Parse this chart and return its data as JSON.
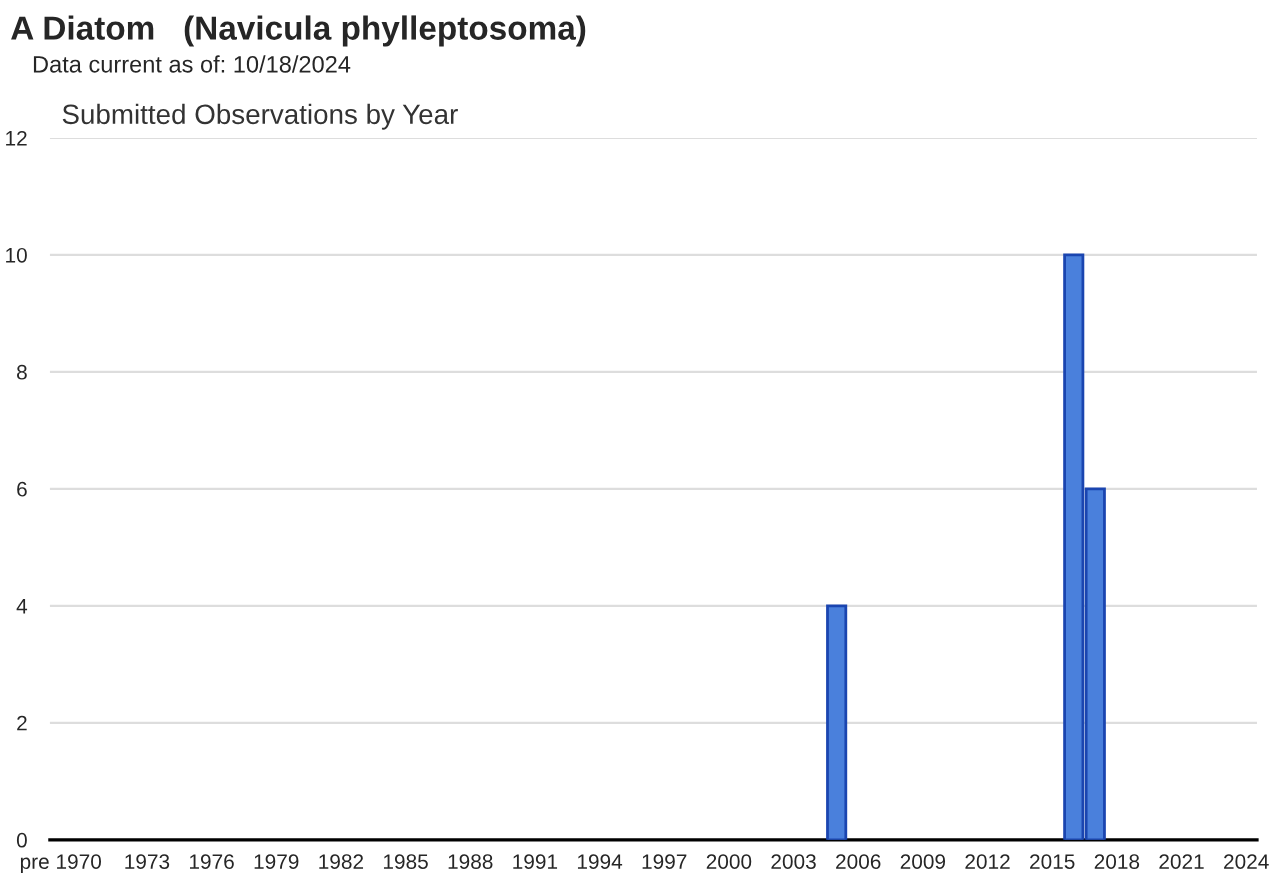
{
  "chart_data": {
    "type": "bar",
    "title": "A Diatom   (Navicula phylleptosoma)",
    "subtitle": "Data current as of: 10/18/2024",
    "annotations": [
      "Submitted Observations by Year"
    ],
    "categories": [
      "pre 1970",
      null,
      null,
      null,
      "1973",
      null,
      null,
      "1976",
      null,
      null,
      "1979",
      null,
      null,
      "1982",
      null,
      null,
      "1985",
      null,
      null,
      "1988",
      null,
      null,
      "1991",
      null,
      null,
      "1994",
      null,
      null,
      "1997",
      null,
      null,
      "2000",
      null,
      null,
      "2003",
      null,
      null,
      "2006",
      null,
      null,
      "2009",
      null,
      null,
      "2012",
      null,
      null,
      "2015",
      null,
      null,
      "2018",
      null,
      null,
      "2021",
      null,
      null,
      "2024"
    ],
    "values": [
      0,
      0,
      0,
      0,
      0,
      0,
      0,
      0,
      0,
      0,
      0,
      0,
      0,
      0,
      0,
      0,
      0,
      0,
      0,
      0,
      0,
      0,
      0,
      0,
      0,
      0,
      0,
      0,
      0,
      0,
      0,
      0,
      0,
      0,
      0,
      0,
      4,
      0,
      0,
      0,
      0,
      0,
      0,
      0,
      0,
      0,
      0,
      10,
      6,
      0,
      0,
      0,
      0,
      0,
      0,
      0
    ],
    "color": "#4a80dc",
    "ylim": [
      0,
      12
    ],
    "yticks": [
      0,
      2,
      4,
      6,
      8,
      10,
      12
    ],
    "grid": "y",
    "legend": false
  }
}
